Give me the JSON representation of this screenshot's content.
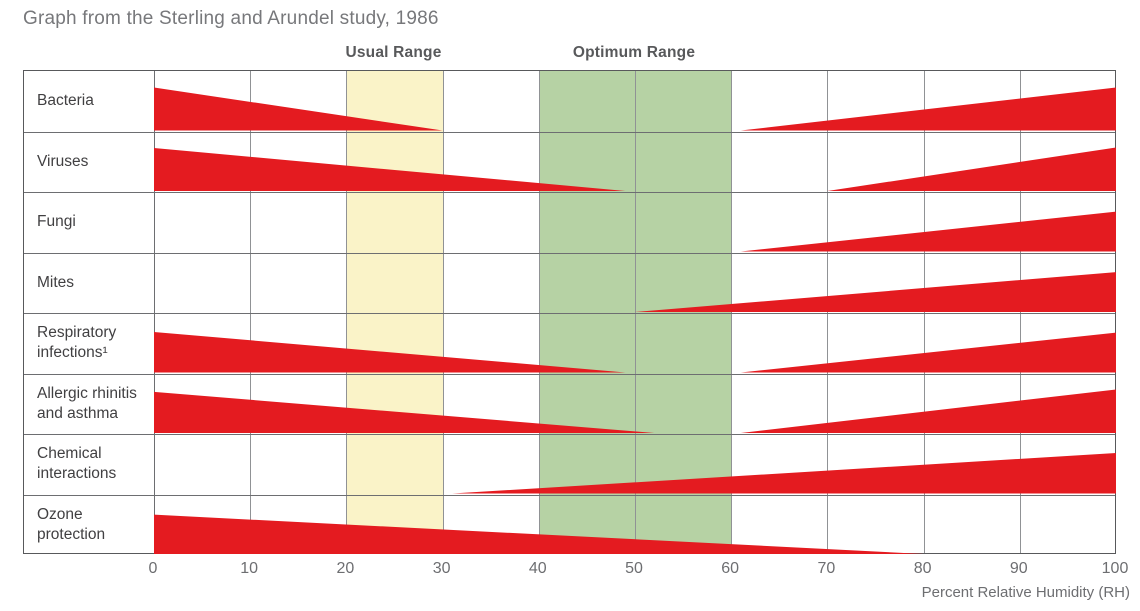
{
  "title": "Graph from the Sterling and Arundel study, 1986",
  "chart_data": {
    "type": "area",
    "title": "Graph from the Sterling and Arundel study, 1986",
    "xlabel": "Percent Relative Humidity (RH)",
    "ylabel": "",
    "xlim": [
      0,
      100
    ],
    "x_ticks": [
      0,
      10,
      20,
      30,
      40,
      50,
      60,
      70,
      80,
      90,
      100
    ],
    "grid": true,
    "legend_position": "none",
    "description": "Each row shows a red wedge; wedge thickness indicates severity of the factor at that relative humidity. Wedges taper to a point where the factor is minimized.",
    "colors": {
      "wedge_red": "#e41b20",
      "usual_band": "#faf3c8",
      "optimum_band": "#b6d2a4",
      "outer_border": "#58595b",
      "row_border": "#6d6e71",
      "gridline": "#909295",
      "title_text": "#77787b",
      "row_label_text": "#414042",
      "axis_text": "#6d6e71",
      "header_text": "#58595b"
    },
    "bands": [
      {
        "label": "Usual Range",
        "from": 20,
        "to": 30,
        "color": "#faf3c8"
      },
      {
        "label": "Optimum Range",
        "from": 40,
        "to": 60,
        "color": "#b6d2a4"
      }
    ],
    "rows": [
      {
        "label": "Bacteria",
        "lines": [
          "Bacteria"
        ],
        "segments": [
          {
            "from": 0,
            "to": 30,
            "taper": "decreasing",
            "peak_height": 0.71
          },
          {
            "from": 61,
            "to": 100,
            "taper": "increasing",
            "peak_height": 0.71
          }
        ]
      },
      {
        "label": "Viruses",
        "lines": [
          "Viruses"
        ],
        "segments": [
          {
            "from": 0,
            "to": 49,
            "taper": "decreasing",
            "peak_height": 0.71
          },
          {
            "from": 70,
            "to": 100,
            "taper": "increasing",
            "peak_height": 0.72
          }
        ]
      },
      {
        "label": "Fungi",
        "lines": [
          "Fungi"
        ],
        "segments": [
          {
            "from": 61,
            "to": 100,
            "taper": "increasing",
            "peak_height": 0.66
          }
        ]
      },
      {
        "label": "Mites",
        "lines": [
          "Mites"
        ],
        "segments": [
          {
            "from": 50,
            "to": 100,
            "taper": "increasing",
            "peak_height": 0.66
          }
        ]
      },
      {
        "label": "Respiratory infections¹",
        "lines": [
          "Respiratory",
          "infections¹"
        ],
        "segments": [
          {
            "from": 0,
            "to": 49,
            "taper": "decreasing",
            "peak_height": 0.67
          },
          {
            "from": 61,
            "to": 100,
            "taper": "increasing",
            "peak_height": 0.66
          }
        ]
      },
      {
        "label": "Allergic rhinitis and asthma",
        "lines": [
          "Allergic rhinitis",
          "and asthma"
        ],
        "segments": [
          {
            "from": 0,
            "to": 52,
            "taper": "decreasing",
            "peak_height": 0.68
          },
          {
            "from": 61,
            "to": 100,
            "taper": "increasing",
            "peak_height": 0.72
          }
        ]
      },
      {
        "label": "Chemical interactions",
        "lines": [
          "Chemical",
          "interactions"
        ],
        "segments": [
          {
            "from": 31,
            "to": 100,
            "taper": "increasing",
            "peak_height": 0.67
          }
        ]
      },
      {
        "label": "Ozone protection",
        "lines": [
          "Ozone",
          "protection"
        ],
        "segments": [
          {
            "from": 0,
            "to": 80,
            "taper": "decreasing",
            "peak_height": 0.65
          }
        ]
      }
    ]
  }
}
